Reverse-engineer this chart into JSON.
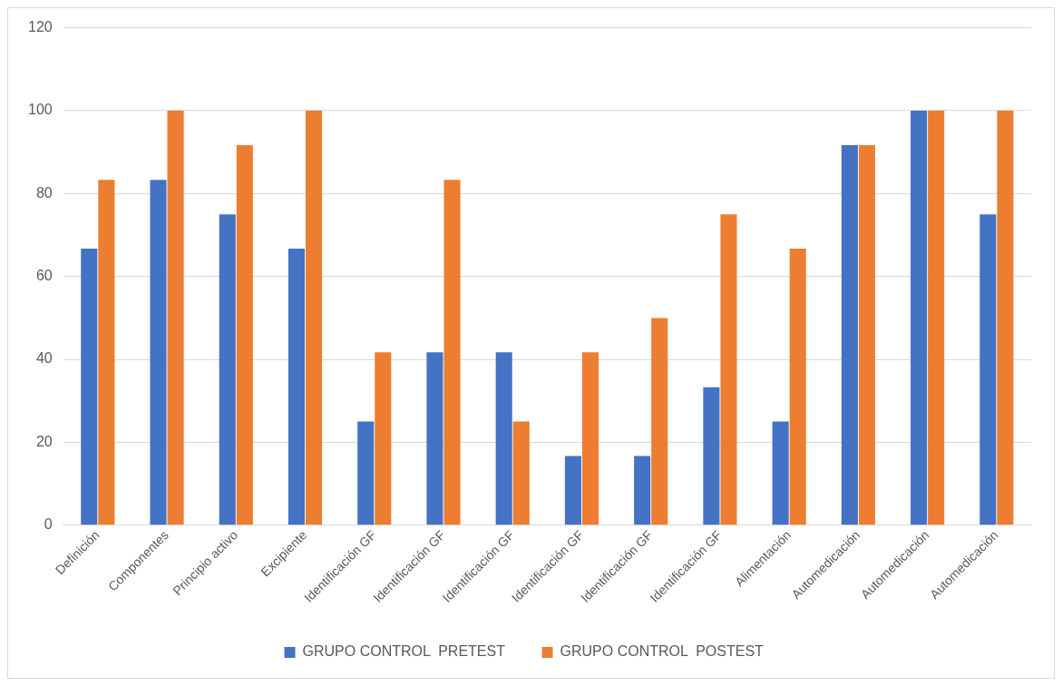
{
  "chart_data": {
    "type": "bar",
    "categories": [
      "Definición",
      "Componentes",
      "Principio activo",
      "Excipiente",
      "Identificación GF",
      "Identificación GF",
      "Identificación GF",
      "Identificación GF",
      "Identificación GF",
      "Identificación GF",
      "Alimentación",
      "Automedicación",
      "Automedicación",
      "Automedicación"
    ],
    "series": [
      {
        "name": "GRUPO CONTROL  PRETEST",
        "color": "#4472c4",
        "values": [
          66.7,
          83.3,
          75,
          66.7,
          25,
          41.7,
          41.7,
          16.7,
          16.7,
          33.3,
          25,
          91.7,
          100,
          75
        ]
      },
      {
        "name": "GRUPO CONTROL  POSTEST",
        "color": "#ed7d31",
        "values": [
          83.3,
          100,
          91.7,
          100,
          41.7,
          83.3,
          25,
          41.7,
          50,
          75,
          66.7,
          91.7,
          100,
          100
        ]
      }
    ],
    "ylim": [
      0,
      120
    ],
    "yticks": [
      0,
      20,
      40,
      60,
      80,
      100,
      120
    ],
    "grid": "y",
    "legend": "bottom"
  }
}
